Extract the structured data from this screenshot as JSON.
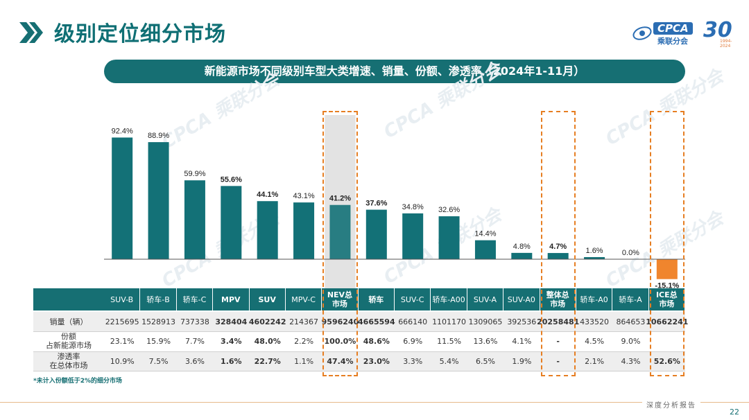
{
  "header": {
    "title": "级别定位细分市场",
    "subtitle": "新能源市场不同级别车型大类增速、销量、份额、渗透率（2024年1-11月）",
    "logo_name": "CPCA",
    "logo_cn": "乘联分会",
    "logo_30": "30",
    "logo_30_years": "1994-2024"
  },
  "colors": {
    "bar_positive": "#137177",
    "bar_negative": "#f0852d",
    "accent_dash": "#e67e22",
    "header_teal": "#166f73"
  },
  "chart_data": {
    "type": "bar",
    "title": "新能源市场不同级别车型大类增速、销量、份额、渗透率（2024年1-11月）",
    "series_name": "增速",
    "categories": [
      "SUV-B",
      "轿车-B",
      "轿车-C",
      "MPV",
      "SUV",
      "MPV-C",
      "NEV总市场",
      "轿车",
      "SUV-C",
      "轿车-A00",
      "SUV-A",
      "SUV-A0",
      "整体总市场",
      "轿车-A0",
      "轿车-A",
      "ICE总市场"
    ],
    "header_labels": [
      "SUV-B",
      "轿车-B",
      "轿车-C",
      "MPV",
      "SUV",
      "MPV-C",
      "NEV总\n市场",
      "轿车",
      "SUV-C",
      "轿车-A00",
      "SUV-A",
      "SUV-A0",
      "整体总\n市场",
      "轿车-A0",
      "轿车-A",
      "ICE总\n市场"
    ],
    "values": [
      92.4,
      88.9,
      59.9,
      55.6,
      44.1,
      43.1,
      41.2,
      37.6,
      34.8,
      32.6,
      14.4,
      4.8,
      4.7,
      1.6,
      0.0,
      -15.1
    ],
    "value_labels": [
      "92.4%",
      "88.9%",
      "59.9%",
      "55.6%",
      "44.1%",
      "43.1%",
      "41.2%",
      "37.6%",
      "34.8%",
      "32.6%",
      "14.4%",
      "4.8%",
      "4.7%",
      "1.6%",
      "0.0%",
      "-15.1%"
    ],
    "bold_index": [
      3,
      4,
      6,
      7,
      12,
      15
    ],
    "highlight_index": [
      6,
      12,
      15
    ],
    "ylim": [
      -20,
      100
    ],
    "unit": "%"
  },
  "table": {
    "rows": [
      {
        "label": "销量（辆）",
        "values": [
          "2215695",
          "1528913",
          "737338",
          "328404",
          "4602242",
          "214367",
          "9596240",
          "4665594",
          "666140",
          "1101170",
          "1309065",
          "392536",
          "20258481",
          "433520",
          "864653",
          "10662241"
        ]
      },
      {
        "label": "份额\n占新能源市场",
        "values": [
          "23.1%",
          "15.9%",
          "7.7%",
          "3.4%",
          "48.0%",
          "2.2%",
          "100.0%",
          "48.6%",
          "6.9%",
          "11.5%",
          "13.6%",
          "4.1%",
          "-",
          "4.5%",
          "9.0%",
          ""
        ]
      },
      {
        "label": "渗透率\n在总体市场",
        "values": [
          "10.9%",
          "7.5%",
          "3.6%",
          "1.6%",
          "22.7%",
          "1.1%",
          "47.4%",
          "23.0%",
          "3.3%",
          "5.4%",
          "6.5%",
          "1.9%",
          "-",
          "2.1%",
          "4.3%",
          "52.6%"
        ]
      }
    ]
  },
  "footnote": "*未计入份额低于2%的细分市场",
  "footer": {
    "report_label": "深度分析报告",
    "page_number": "22"
  },
  "watermark_text": "CPCA 乘联分会"
}
